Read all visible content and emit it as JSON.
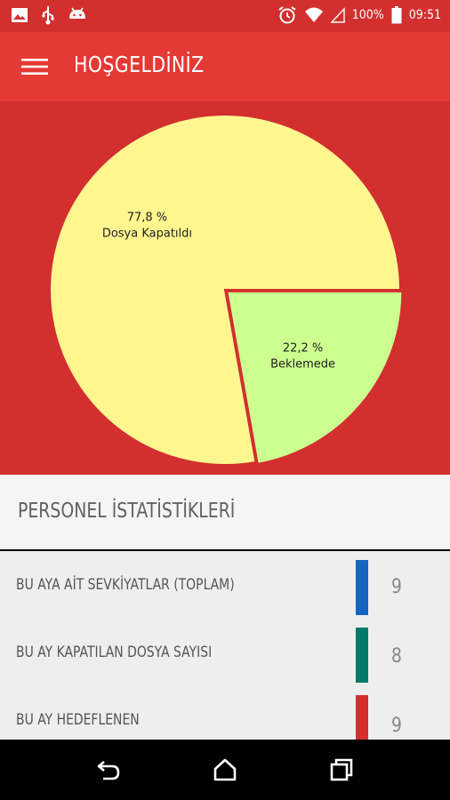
{
  "status_bar": {
    "battery": "100%",
    "time": "09:51",
    "left_icons": [
      "image-icon",
      "usb-icon",
      "android-icon"
    ],
    "right_icons": [
      "alarm-icon",
      "wifi-icon",
      "signal-icon",
      "battery-icon"
    ]
  },
  "app_bar": {
    "title": "HOŞGELDİNİZ",
    "menu_icon": "hamburger-menu-icon"
  },
  "chart_data": {
    "type": "pie",
    "slices": [
      {
        "label": "Dosya Kapatıldı",
        "value": 77.8,
        "percent_text": "77,8 %",
        "color": "#fff68f"
      },
      {
        "label": "Beklemede",
        "value": 22.2,
        "percent_text": "22,2 %",
        "color": "#ccff90"
      }
    ]
  },
  "section": {
    "title": "PERSONEL İSTATİSTİKLERİ"
  },
  "stats": [
    {
      "label": "BU AYA AİT SEVKİYATLAR (TOPLAM)",
      "value": "9",
      "color": "#1565c0"
    },
    {
      "label": "BU AY KAPATILAN DOSYA SAYISI",
      "value": "8",
      "color": "#00796b"
    },
    {
      "label": "BU AY HEDEFLENEN",
      "value": "9",
      "color": "#d32f2f"
    }
  ],
  "nav": {
    "back_icon": "back-icon",
    "home_icon": "home-icon",
    "recents_icon": "recents-icon"
  },
  "colors": {
    "status_bar": "#d32f2f",
    "app_bar": "#e53935",
    "chart_background": "#d32f2f"
  }
}
